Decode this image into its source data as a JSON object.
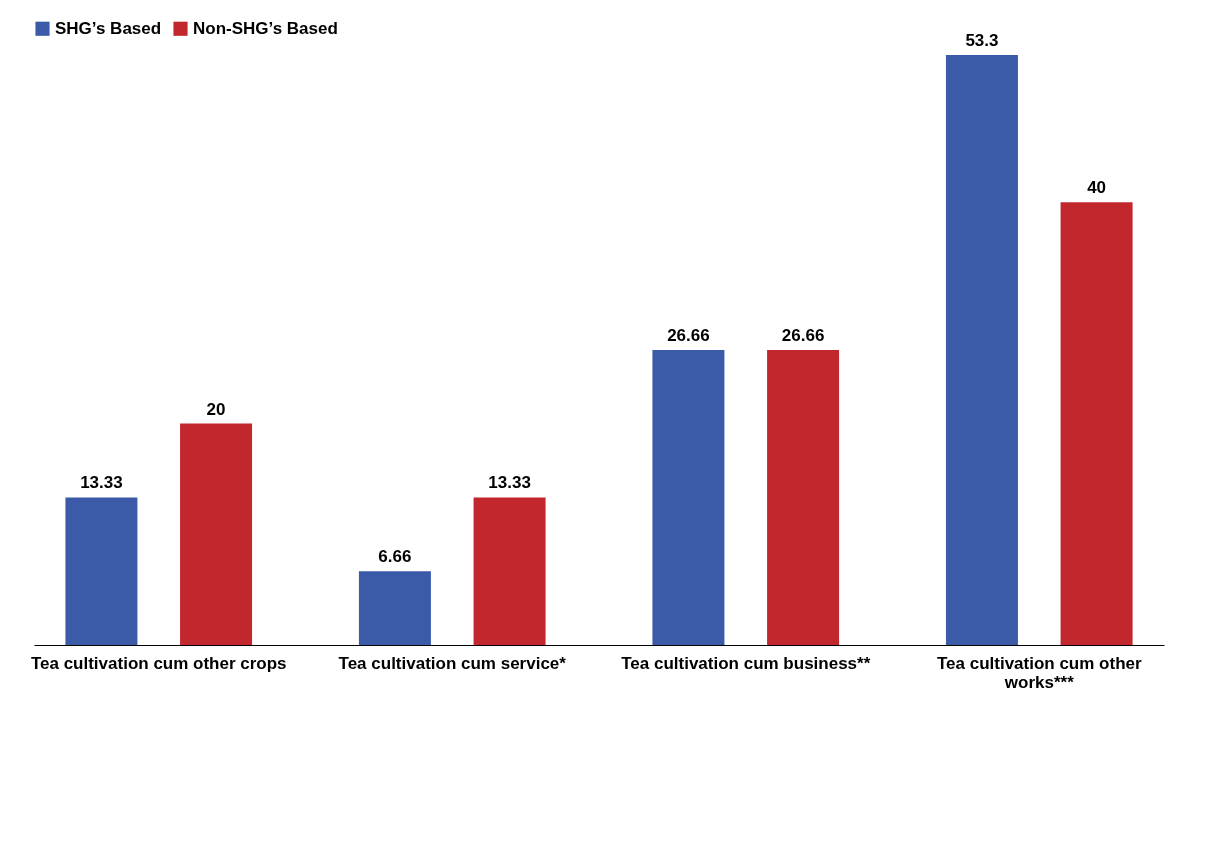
{
  "chart_data": {
    "type": "bar",
    "categories": [
      "Tea cultivation cum other crops",
      "Tea cultivation cum service*",
      "Tea cultivation cum business**",
      "Tea cultivation cum other works***"
    ],
    "series": [
      {
        "name": "SHG’s Based",
        "color": "#3b5ba9",
        "values": [
          13.33,
          6.66,
          26.66,
          53.3
        ]
      },
      {
        "name": "Non-SHG’s Based",
        "color": "#c1272d",
        "values": [
          20,
          13.33,
          26.66,
          40
        ]
      }
    ],
    "data_labels": true,
    "legend": "top",
    "grid": false
  }
}
